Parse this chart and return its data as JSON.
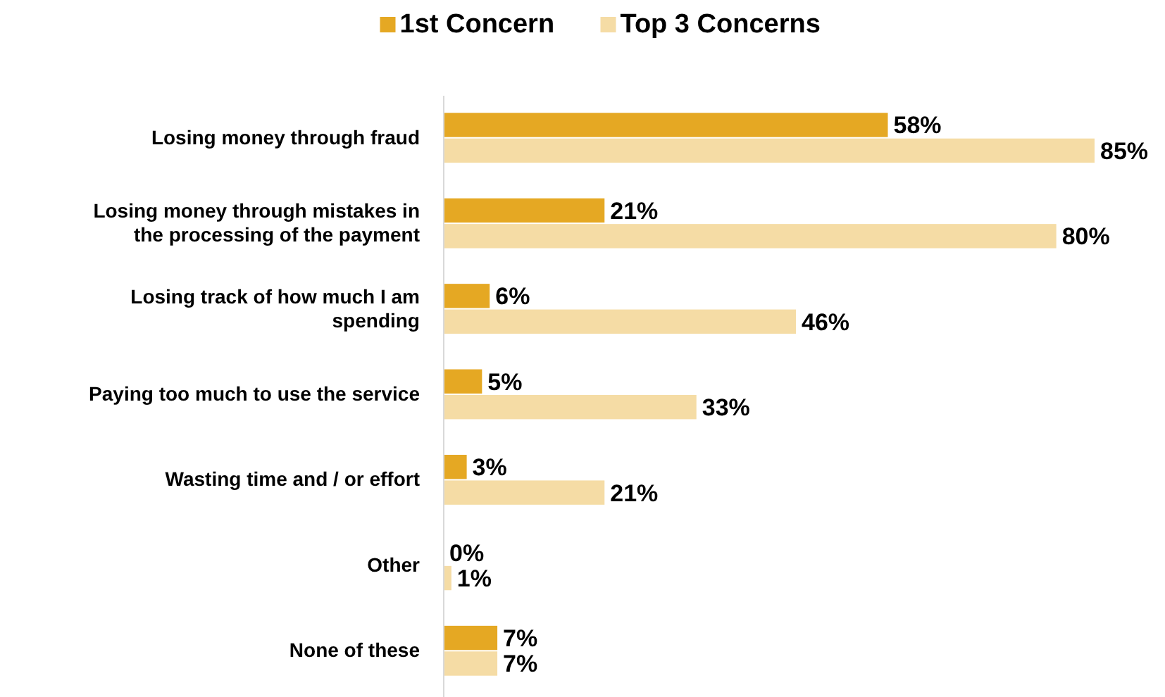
{
  "chart_data": {
    "type": "bar",
    "orientation": "horizontal",
    "categories": [
      "Losing money through fraud",
      "Losing money through mistakes in the processing of the payment",
      "Losing track of how much I am spending",
      "Paying too much to use the service",
      "Wasting time and / or effort",
      "Other",
      "None of these"
    ],
    "series": [
      {
        "name": "1st Concern",
        "color": "#e5a823",
        "values": [
          58,
          21,
          6,
          5,
          3,
          0,
          7
        ],
        "value_labels": [
          "58%",
          "21%",
          "6%",
          "5%",
          "3%",
          "0%",
          "7%"
        ]
      },
      {
        "name": "Top 3 Concerns",
        "color": "#f5dca5",
        "values": [
          85,
          80,
          46,
          33,
          21,
          1,
          7
        ],
        "value_labels": [
          "85%",
          "80%",
          "46%",
          "33%",
          "21%",
          "1%",
          "7%"
        ]
      }
    ],
    "xlim": [
      0,
      85
    ],
    "tick_labels": "y",
    "legend": "top"
  }
}
